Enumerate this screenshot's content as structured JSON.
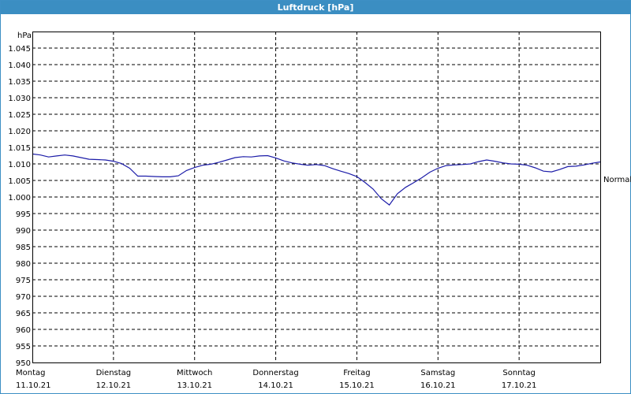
{
  "window": {
    "title": "Luftdruck [hPa]"
  },
  "chart_data": {
    "type": "line",
    "title": "Luftdruck [hPa]",
    "ylabel": "hPa",
    "ylim": [
      950,
      1050
    ],
    "yticks": [
      950,
      955,
      960,
      965,
      970,
      975,
      980,
      985,
      990,
      995,
      1000,
      1005,
      1010,
      1015,
      1020,
      1025,
      1030,
      1035,
      1040,
      1045
    ],
    "ytick_labels": [
      "950",
      "955",
      "960",
      "965",
      "970",
      "975",
      "980",
      "985",
      "990",
      "995",
      "1.000",
      "1.005",
      "1.010",
      "1.015",
      "1.020",
      "1.025",
      "1.030",
      "1.035",
      "1.040",
      "1.045"
    ],
    "xlim": [
      0,
      7
    ],
    "days": [
      {
        "name": "Montag",
        "date": "11.10.21"
      },
      {
        "name": "Dienstag",
        "date": "12.10.21"
      },
      {
        "name": "Mittwoch",
        "date": "13.10.21"
      },
      {
        "name": "Donnerstag",
        "date": "14.10.21"
      },
      {
        "name": "Freitag",
        "date": "15.10.21"
      },
      {
        "name": "Samstag",
        "date": "16.10.21"
      },
      {
        "name": "Sonntag",
        "date": "17.10.21"
      }
    ],
    "reference_line": {
      "label": "Normal",
      "value": 1005.5
    },
    "grid": true,
    "series": [
      {
        "color": "#1c1ca8",
        "x": [
          0,
          0.1,
          0.2,
          0.3,
          0.4,
          0.5,
          0.6,
          0.7,
          0.8,
          0.9,
          1.0,
          1.1,
          1.2,
          1.3,
          1.4,
          1.5,
          1.6,
          1.7,
          1.8,
          1.9,
          2.0,
          2.1,
          2.2,
          2.3,
          2.4,
          2.5,
          2.6,
          2.7,
          2.8,
          2.9,
          3.0,
          3.1,
          3.2,
          3.3,
          3.4,
          3.5,
          3.6,
          3.7,
          3.8,
          3.9,
          4.0,
          4.1,
          4.2,
          4.3,
          4.4,
          4.5,
          4.6,
          4.7,
          4.8,
          4.9,
          5.0,
          5.1,
          5.2,
          5.3,
          5.4,
          5.5,
          5.6,
          5.7,
          5.8,
          5.9,
          6.0,
          6.1,
          6.2,
          6.3,
          6.4,
          6.5,
          6.6,
          6.7,
          6.8,
          6.9,
          7.0
        ],
        "y": [
          1013,
          1012.7,
          1012.1,
          1012.4,
          1012.7,
          1012.4,
          1011.9,
          1011.4,
          1011.3,
          1011.2,
          1010.8,
          1010.1,
          1008.7,
          1006.3,
          1006.3,
          1006.2,
          1006.1,
          1006.1,
          1006.4,
          1008.0,
          1008.9,
          1009.6,
          1009.9,
          1010.5,
          1011.2,
          1011.9,
          1012.2,
          1012.1,
          1012.4,
          1012.5,
          1011.8,
          1010.9,
          1010.3,
          1009.9,
          1009.6,
          1009.8,
          1009.5,
          1008.6,
          1007.8,
          1007.1,
          1006.2,
          1004.4,
          1002.4,
          999.5,
          997.6,
          1001.0,
          1002.9,
          1004.3,
          1005.8,
          1007.5,
          1008.7,
          1009.5,
          1009.7,
          1009.8,
          1010.0,
          1010.7,
          1011.2,
          1010.8,
          1010.3,
          1010.0,
          1009.9,
          1009.6,
          1008.8,
          1007.8,
          1007.6,
          1008.3,
          1009.2,
          1009.3,
          1009.7,
          1010.2,
          1010.6
        ]
      }
    ]
  }
}
